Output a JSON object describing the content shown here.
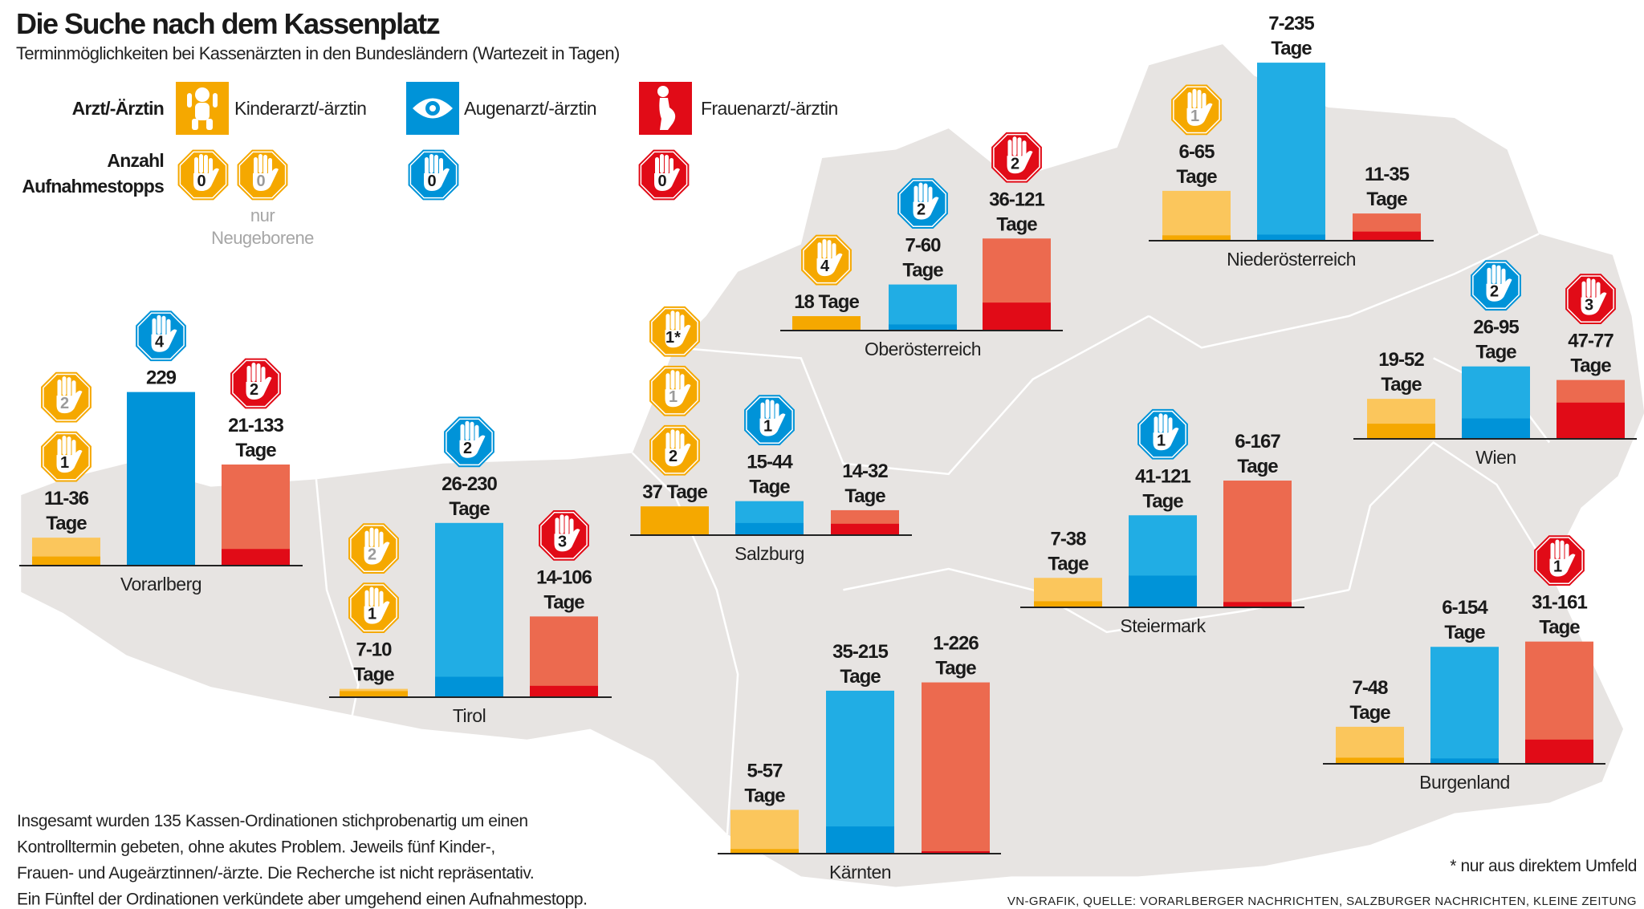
{
  "title": "Die Suche nach dem Kassenplatz",
  "subtitle": "Terminmöglichkeiten bei Kassenärzten in den Bundesländern (Wartezeit in Tagen)",
  "legend": {
    "doctor_heading": "Arzt/-Ärztin",
    "stops_heading_1": "Anzahl",
    "stops_heading_2": "Aufnahmestopps",
    "specialties": [
      {
        "key": "kinder",
        "label": "Kinderarzt/-ärztin",
        "icon": "child-icon"
      },
      {
        "key": "augen",
        "label": "Augenarzt/-ärztin",
        "icon": "eye-icon"
      },
      {
        "key": "frauen",
        "label": "Frauenarzt/-ärztin",
        "icon": "pregnant-woman-icon"
      }
    ],
    "stop_examples": [
      {
        "spec": "kinder",
        "n": "0",
        "gray": false
      },
      {
        "spec": "kinder",
        "n": "0",
        "gray": true
      },
      {
        "spec": "augen",
        "n": "0",
        "gray": false
      },
      {
        "spec": "frauen",
        "n": "0",
        "gray": false
      }
    ],
    "newborn_note_1": "nur",
    "newborn_note_2": "Neugeborene"
  },
  "colors": {
    "kinder": {
      "light": "#fbc65c",
      "dark": "#f5a800"
    },
    "augen": {
      "light": "#21ade4",
      "dark": "#0093d8"
    },
    "frauen": {
      "light": "#ec6a4f",
      "dark": "#e10b17"
    },
    "map": "#e7e4e2",
    "tage_word": "Tage"
  },
  "chart_data": {
    "type": "bar",
    "title": "Die Suche nach dem Kassenplatz",
    "unit": "Tage (Wartezeit)",
    "series": [
      "Kinderarzt/-ärztin",
      "Augenarzt/-ärztin",
      "Frauenarzt/-ärztin"
    ],
    "regions": [
      {
        "name": "Vorarlberg",
        "bars": [
          {
            "min": 11,
            "max": 36,
            "label": [
              "11-36",
              "Tage"
            ],
            "stops": [
              {
                "n": "2",
                "gray": true
              },
              {
                "n": "1",
                "gray": false
              }
            ]
          },
          {
            "min": 229,
            "max": 229,
            "label": [
              "229"
            ],
            "stops": [
              {
                "n": "4",
                "gray": false
              }
            ]
          },
          {
            "min": 21,
            "max": 133,
            "label": [
              "21-133",
              "Tage"
            ],
            "stops": [
              {
                "n": "2",
                "gray": false
              }
            ]
          }
        ]
      },
      {
        "name": "Tirol",
        "bars": [
          {
            "min": 7,
            "max": 10,
            "label": [
              "7-10",
              "Tage"
            ],
            "stops": [
              {
                "n": "2",
                "gray": true
              },
              {
                "n": "1",
                "gray": false
              }
            ]
          },
          {
            "min": 26,
            "max": 230,
            "label": [
              "26-230",
              "Tage"
            ],
            "stops": [
              {
                "n": "2",
                "gray": false
              }
            ]
          },
          {
            "min": 14,
            "max": 106,
            "label": [
              "14-106",
              "Tage"
            ],
            "stops": [
              {
                "n": "3",
                "gray": false
              }
            ]
          }
        ]
      },
      {
        "name": "Salzburg",
        "bars": [
          {
            "min": 37,
            "max": 37,
            "label": [
              "37 Tage"
            ],
            "stops": [
              {
                "n": "1*",
                "gray": false
              },
              {
                "n": "1",
                "gray": true
              },
              {
                "n": "2",
                "gray": false
              }
            ]
          },
          {
            "min": 15,
            "max": 44,
            "label": [
              "15-44",
              "Tage"
            ],
            "stops": [
              {
                "n": "1",
                "gray": false
              }
            ]
          },
          {
            "min": 14,
            "max": 32,
            "label": [
              "14-32",
              "Tage"
            ],
            "stops": []
          }
        ]
      },
      {
        "name": "Oberösterreich",
        "bars": [
          {
            "min": 18,
            "max": 18,
            "label": [
              "18 Tage"
            ],
            "stops": [
              {
                "n": "4",
                "gray": false
              }
            ]
          },
          {
            "min": 7,
            "max": 60,
            "label": [
              "7-60",
              "Tage"
            ],
            "stops": [
              {
                "n": "2",
                "gray": false
              }
            ]
          },
          {
            "min": 36,
            "max": 121,
            "label": [
              "36-121",
              "Tage"
            ],
            "stops": [
              {
                "n": "2",
                "gray": false
              }
            ]
          }
        ]
      },
      {
        "name": "Niederösterreich",
        "bars": [
          {
            "min": 6,
            "max": 65,
            "label": [
              "6-65",
              "Tage"
            ],
            "stops": [
              {
                "n": "1",
                "gray": true
              }
            ]
          },
          {
            "min": 7,
            "max": 235,
            "label": [
              "7-235",
              "Tage"
            ],
            "stops": []
          },
          {
            "min": 11,
            "max": 35,
            "label": [
              "11-35",
              "Tage"
            ],
            "stops": []
          }
        ]
      },
      {
        "name": "Steiermark",
        "bars": [
          {
            "min": 7,
            "max": 38,
            "label": [
              "7-38",
              "Tage"
            ],
            "stops": []
          },
          {
            "min": 41,
            "max": 121,
            "label": [
              "41-121",
              "Tage"
            ],
            "stops": [
              {
                "n": "1",
                "gray": false
              }
            ]
          },
          {
            "min": 6,
            "max": 167,
            "label": [
              "6-167",
              "Tage"
            ],
            "stops": []
          }
        ]
      },
      {
        "name": "Wien",
        "bars": [
          {
            "min": 19,
            "max": 52,
            "label": [
              "19-52",
              "Tage"
            ],
            "stops": []
          },
          {
            "min": 26,
            "max": 95,
            "label": [
              "26-95",
              "Tage"
            ],
            "stops": [
              {
                "n": "2",
                "gray": false
              }
            ]
          },
          {
            "min": 47,
            "max": 77,
            "label": [
              "47-77",
              "Tage"
            ],
            "stops": [
              {
                "n": "3",
                "gray": false
              }
            ]
          }
        ]
      },
      {
        "name": "Kärnten",
        "bars": [
          {
            "min": 5,
            "max": 57,
            "label": [
              "5-57",
              "Tage"
            ],
            "stops": []
          },
          {
            "min": 35,
            "max": 215,
            "label": [
              "35-215",
              "Tage"
            ],
            "stops": []
          },
          {
            "min": 1,
            "max": 226,
            "label": [
              "1-226",
              "Tage"
            ],
            "stops": []
          }
        ]
      },
      {
        "name": "Burgenland",
        "bars": [
          {
            "min": 7,
            "max": 48,
            "label": [
              "7-48",
              "Tage"
            ],
            "stops": []
          },
          {
            "min": 6,
            "max": 154,
            "label": [
              "6-154",
              "Tage"
            ],
            "stops": []
          },
          {
            "min": 31,
            "max": 161,
            "label": [
              "31-161",
              "Tage"
            ],
            "stops": [
              {
                "n": "1",
                "gray": false
              }
            ]
          }
        ]
      }
    ]
  },
  "notes": {
    "body": [
      "Insgesamt wurden 135 Kassen-Ordinationen stichprobenartig um einen",
      "Kontrolltermin gebeten, ohne akutes Problem. Jeweils fünf Kinder-,",
      "Frauen- und Augeärztinnen/-ärzte. Die Recherche ist nicht repräsentativ.",
      "Ein Fünftel der Ordinationen verkündete aber umgehend einen Aufnahmestopp."
    ],
    "footnote": "* nur aus direktem Umfeld",
    "source": "VN-GRAFIK, QUELLE: VORARLBERGER NACHRICHTEN, SALZBURGER NACHRICHTEN, KLEINE ZEITUNG"
  }
}
